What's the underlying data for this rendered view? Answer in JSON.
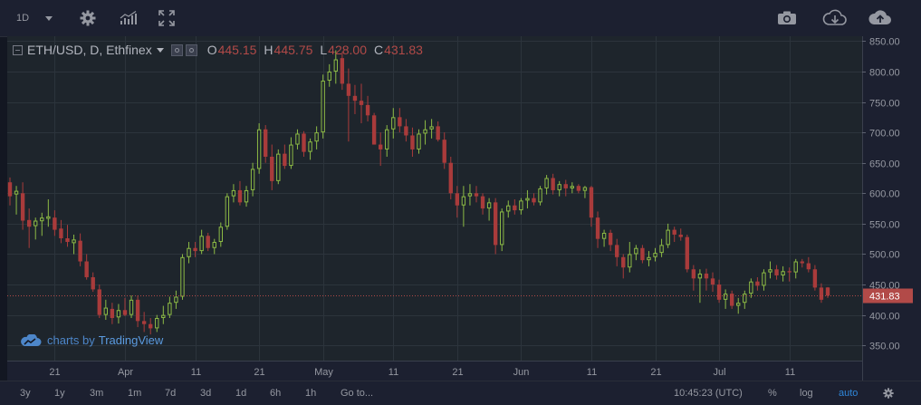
{
  "toolbar": {
    "interval": "1D",
    "icons": [
      "gear-icon",
      "indicators-icon",
      "fullscreen-icon",
      "camera-icon",
      "cloud-download-icon",
      "cloud-upload-icon"
    ]
  },
  "legend": {
    "symbol": "ETH/USD, D, Ethfinex",
    "open_label": "O",
    "open": "445.15",
    "high_label": "H",
    "high": "445.75",
    "low_label": "L",
    "low": "428.00",
    "close_label": "C",
    "close": "431.83"
  },
  "watermark": {
    "prefix": "charts by",
    "brand": "TradingView"
  },
  "bottombar": {
    "ranges": [
      "3y",
      "1y",
      "3m",
      "1m",
      "7d",
      "3d",
      "1d",
      "6h",
      "1h"
    ],
    "goto": "Go to...",
    "time": "10:45:23 (UTC)",
    "percent": "%",
    "log": "log",
    "auto": "auto"
  },
  "colors": {
    "background": "#1e252c",
    "up": "#8dbb45",
    "down": "#a93b3b",
    "grid": "#2c343c",
    "price_line": "#b24a48",
    "accent": "#2f86d8"
  },
  "chart_data": {
    "type": "candlestick",
    "title": "ETH/USD, D, Ethfinex",
    "ylim": [
      325,
      858
    ],
    "y_ticks": [
      "850.00",
      "800.00",
      "750.00",
      "700.00",
      "650.00",
      "600.00",
      "550.00",
      "500.00",
      "450.00",
      "400.00",
      "350.00"
    ],
    "x_ticks": [
      "21",
      "Apr",
      "11",
      "21",
      "May",
      "11",
      "21",
      "Jun",
      "11",
      "21",
      "Jul",
      "11"
    ],
    "last_price": "431.83",
    "candles": [
      [
        618,
        626,
        580,
        595
      ],
      [
        598,
        612,
        565,
        604
      ],
      [
        600,
        618,
        540,
        555
      ],
      [
        556,
        575,
        510,
        545
      ],
      [
        546,
        560,
        524,
        555
      ],
      [
        554,
        568,
        530,
        560
      ],
      [
        558,
        590,
        545,
        562
      ],
      [
        560,
        572,
        530,
        540
      ],
      [
        542,
        556,
        518,
        526
      ],
      [
        526,
        548,
        512,
        520
      ],
      [
        518,
        532,
        500,
        524
      ],
      [
        522,
        534,
        480,
        488
      ],
      [
        488,
        500,
        458,
        462
      ],
      [
        462,
        470,
        438,
        442
      ],
      [
        442,
        450,
        395,
        400
      ],
      [
        400,
        425,
        392,
        412
      ],
      [
        410,
        420,
        385,
        395
      ],
      [
        396,
        418,
        386,
        408
      ],
      [
        408,
        428,
        398,
        400
      ],
      [
        400,
        432,
        395,
        425
      ],
      [
        425,
        432,
        380,
        390
      ],
      [
        390,
        405,
        372,
        385
      ],
      [
        385,
        395,
        368,
        378
      ],
      [
        378,
        400,
        372,
        395
      ],
      [
        395,
        415,
        385,
        400
      ],
      [
        400,
        430,
        395,
        420
      ],
      [
        420,
        440,
        410,
        430
      ],
      [
        430,
        500,
        425,
        495
      ],
      [
        495,
        520,
        485,
        510
      ],
      [
        510,
        520,
        495,
        505
      ],
      [
        505,
        540,
        500,
        530
      ],
      [
        530,
        535,
        505,
        510
      ],
      [
        510,
        525,
        500,
        520
      ],
      [
        520,
        552,
        512,
        545
      ],
      [
        545,
        600,
        540,
        595
      ],
      [
        595,
        615,
        585,
        605
      ],
      [
        605,
        620,
        580,
        585
      ],
      [
        585,
        612,
        578,
        605
      ],
      [
        605,
        650,
        595,
        640
      ],
      [
        640,
        715,
        632,
        705
      ],
      [
        705,
        712,
        650,
        660
      ],
      [
        660,
        680,
        605,
        620
      ],
      [
        620,
        672,
        615,
        665
      ],
      [
        665,
        680,
        640,
        645
      ],
      [
        645,
        692,
        640,
        680
      ],
      [
        680,
        705,
        672,
        698
      ],
      [
        698,
        702,
        660,
        668
      ],
      [
        668,
        690,
        655,
        685
      ],
      [
        685,
        710,
        672,
        700
      ],
      [
        700,
        795,
        690,
        785
      ],
      [
        785,
        812,
        775,
        800
      ],
      [
        800,
        835,
        780,
        820
      ],
      [
        822,
        832,
        770,
        780
      ],
      [
        780,
        805,
        685,
        760
      ],
      [
        760,
        778,
        730,
        752
      ],
      [
        752,
        780,
        715,
        745
      ],
      [
        745,
        760,
        718,
        728
      ],
      [
        728,
        732,
        680,
        680
      ],
      [
        680,
        700,
        645,
        672
      ],
      [
        672,
        712,
        660,
        705
      ],
      [
        705,
        740,
        690,
        725
      ],
      [
        725,
        740,
        700,
        710
      ],
      [
        710,
        722,
        685,
        695
      ],
      [
        695,
        708,
        660,
        672
      ],
      [
        672,
        705,
        665,
        698
      ],
      [
        698,
        720,
        680,
        705
      ],
      [
        705,
        722,
        690,
        710
      ],
      [
        710,
        718,
        685,
        688
      ],
      [
        688,
        700,
        640,
        650
      ],
      [
        650,
        660,
        590,
        600
      ],
      [
        600,
        612,
        560,
        580
      ],
      [
        580,
        612,
        545,
        595
      ],
      [
        595,
        615,
        580,
        600
      ],
      [
        600,
        612,
        585,
        595
      ],
      [
        595,
        600,
        565,
        575
      ],
      [
        575,
        592,
        555,
        585
      ],
      [
        585,
        592,
        500,
        515
      ],
      [
        515,
        575,
        505,
        570
      ],
      [
        570,
        588,
        560,
        580
      ],
      [
        580,
        590,
        565,
        572
      ],
      [
        572,
        592,
        565,
        588
      ],
      [
        588,
        605,
        575,
        592
      ],
      [
        592,
        600,
        580,
        585
      ],
      [
        585,
        612,
        580,
        608
      ],
      [
        608,
        630,
        598,
        625
      ],
      [
        625,
        632,
        598,
        605
      ],
      [
        605,
        620,
        595,
        615
      ],
      [
        615,
        622,
        595,
        608
      ],
      [
        608,
        618,
        600,
        612
      ],
      [
        612,
        615,
        600,
        604
      ],
      [
        604,
        612,
        592,
        610
      ],
      [
        610,
        612,
        545,
        560
      ],
      [
        560,
        570,
        510,
        525
      ],
      [
        525,
        540,
        512,
        535
      ],
      [
        535,
        540,
        505,
        515
      ],
      [
        515,
        525,
        480,
        495
      ],
      [
        495,
        500,
        460,
        478
      ],
      [
        478,
        520,
        470,
        500
      ],
      [
        500,
        515,
        490,
        510
      ],
      [
        510,
        515,
        485,
        490
      ],
      [
        490,
        505,
        480,
        495
      ],
      [
        495,
        510,
        488,
        502
      ],
      [
        502,
        525,
        495,
        515
      ],
      [
        515,
        550,
        510,
        540
      ],
      [
        540,
        545,
        520,
        532
      ],
      [
        532,
        542,
        522,
        528
      ],
      [
        528,
        532,
        470,
        475
      ],
      [
        475,
        482,
        440,
        460
      ],
      [
        460,
        475,
        420,
        468
      ],
      [
        468,
        476,
        440,
        460
      ],
      [
        460,
        470,
        438,
        450
      ],
      [
        450,
        458,
        420,
        425
      ],
      [
        425,
        442,
        410,
        435
      ],
      [
        435,
        440,
        410,
        415
      ],
      [
        415,
        428,
        402,
        420
      ],
      [
        420,
        440,
        410,
        435
      ],
      [
        435,
        460,
        428,
        455
      ],
      [
        455,
        462,
        440,
        448
      ],
      [
        448,
        475,
        440,
        470
      ],
      [
        470,
        488,
        460,
        475
      ],
      [
        475,
        482,
        458,
        465
      ],
      [
        465,
        480,
        455,
        472
      ],
      [
        472,
        478,
        455,
        470
      ],
      [
        470,
        492,
        460,
        488
      ],
      [
        488,
        492,
        478,
        485
      ],
      [
        485,
        495,
        470,
        475
      ],
      [
        475,
        482,
        440,
        445
      ],
      [
        445,
        452,
        420,
        425
      ],
      [
        445.15,
        445.75,
        428,
        431.83
      ]
    ]
  }
}
